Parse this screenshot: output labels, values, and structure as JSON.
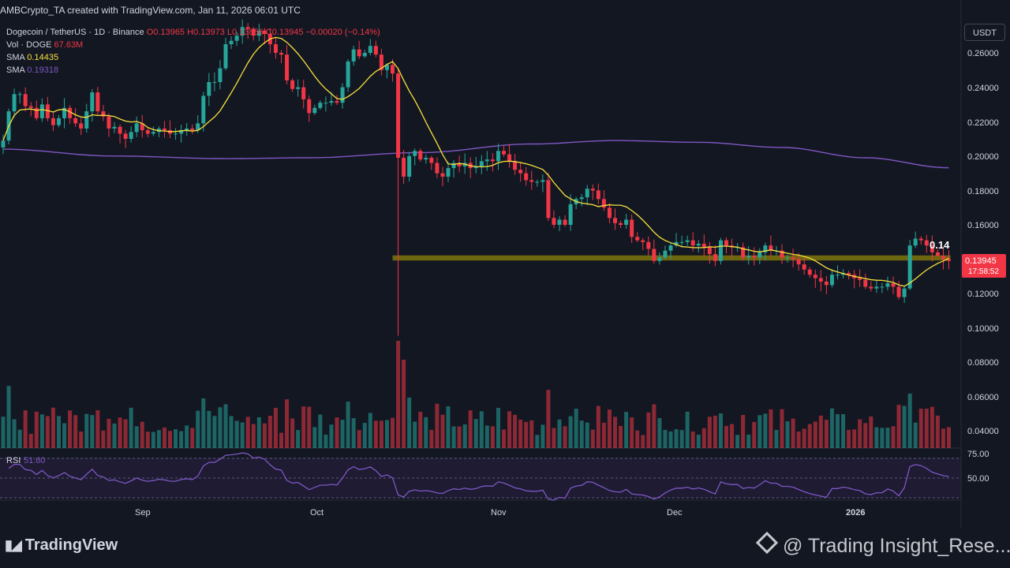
{
  "header": {
    "credit": "AMBCrypto_TA created with TradingView.com, Jan 11, 2026 06:01 UTC",
    "symbol": "Dogecoin / TetherUS · 1D · Binance",
    "ohlc_text": "O0.13965 H0.13973 L0.13856 C0.13945 −0.00020 (−0.14%)",
    "volume_label": "Vol · DOGE",
    "volume_value": "67.63M",
    "sma1_label": "SMA",
    "sma1_value": "0.14435",
    "sma2_label": "SMA",
    "sma2_value": "0.19318",
    "currency_button": "USDT"
  },
  "colors": {
    "background": "#131722",
    "up": "#26a69a",
    "down": "#f23645",
    "sma_fast": "#f7e03d",
    "sma_slow": "#7e57c2",
    "support_zone": "#b5a800",
    "rsi_line": "#7e57c2"
  },
  "price_axis": {
    "labels": [
      "0.26000",
      "0.24000",
      "0.22000",
      "0.20000",
      "0.18000",
      "0.16000",
      "0.14000",
      "0.12000",
      "0.10000",
      "0.08000",
      "0.06000",
      "0.04000"
    ],
    "current_price": "0.13945",
    "countdown": "17:58:52"
  },
  "rsi_axis": {
    "labels": [
      "75.00",
      "50.00"
    ]
  },
  "time_axis": {
    "labels": [
      "Sep",
      "Oct",
      "Nov",
      "Dec",
      "2026"
    ]
  },
  "annotation": {
    "level_label": "0.14"
  },
  "rsi_legend": {
    "label": "RSI",
    "value": "51.60"
  },
  "branding": {
    "logo": "TradingView",
    "watermark": "@ Trading Insight_Rese..."
  },
  "chart_data": [
    {
      "type": "candlestick",
      "symbol": "DOGE/USDT",
      "interval": "1D",
      "y_axis": {
        "min": 0.03,
        "max": 0.27,
        "ticks": [
          0.26,
          0.24,
          0.22,
          0.2,
          0.18,
          0.16,
          0.14,
          0.12,
          0.1,
          0.08,
          0.06,
          0.04
        ]
      },
      "x_axis": {
        "start": "2025-08-09",
        "end": "2026-01-11",
        "tick_labels": [
          "Sep",
          "Oct",
          "Nov",
          "Dec",
          "2026"
        ]
      },
      "close_series": [
        0.209,
        0.226,
        0.236,
        0.236,
        0.229,
        0.228,
        0.222,
        0.23,
        0.222,
        0.218,
        0.222,
        0.228,
        0.222,
        0.219,
        0.216,
        0.226,
        0.237,
        0.226,
        0.223,
        0.216,
        0.217,
        0.213,
        0.21,
        0.214,
        0.219,
        0.215,
        0.213,
        0.214,
        0.216,
        0.215,
        0.213,
        0.213,
        0.215,
        0.216,
        0.215,
        0.219,
        0.235,
        0.243,
        0.243,
        0.251,
        0.265,
        0.267,
        0.27,
        0.275,
        0.274,
        0.27,
        0.273,
        0.271,
        0.265,
        0.26,
        0.259,
        0.244,
        0.239,
        0.24,
        0.233,
        0.225,
        0.228,
        0.231,
        0.231,
        0.232,
        0.231,
        0.24,
        0.255,
        0.262,
        0.258,
        0.26,
        0.264,
        0.259,
        0.25,
        0.253,
        0.248,
        0.199,
        0.188,
        0.2,
        0.203,
        0.198,
        0.199,
        0.196,
        0.19,
        0.188,
        0.193,
        0.196,
        0.194,
        0.196,
        0.193,
        0.194,
        0.197,
        0.198,
        0.197,
        0.203,
        0.201,
        0.197,
        0.192,
        0.19,
        0.186,
        0.185,
        0.185,
        0.186,
        0.164,
        0.16,
        0.163,
        0.16,
        0.172,
        0.175,
        0.176,
        0.181,
        0.18,
        0.175,
        0.17,
        0.164,
        0.161,
        0.16,
        0.163,
        0.153,
        0.151,
        0.15,
        0.146,
        0.139,
        0.141,
        0.145,
        0.148,
        0.15,
        0.15,
        0.151,
        0.148,
        0.149,
        0.147,
        0.143,
        0.139,
        0.151,
        0.148,
        0.147,
        0.147,
        0.141,
        0.142,
        0.141,
        0.144,
        0.148,
        0.145,
        0.145,
        0.141,
        0.141,
        0.14,
        0.137,
        0.134,
        0.131,
        0.129,
        0.127,
        0.125,
        0.131,
        0.131,
        0.132,
        0.131,
        0.129,
        0.128,
        0.124,
        0.123,
        0.124,
        0.124,
        0.126,
        0.124,
        0.118,
        0.123,
        0.148,
        0.152,
        0.151,
        0.148,
        0.144,
        0.142,
        0.14,
        0.139
      ],
      "support_zone": {
        "low": 0.1395,
        "high": 0.142,
        "label": "0.14"
      },
      "sma_fast_last": 0.14435,
      "sma_slow_last": 0.19318
    },
    {
      "type": "bar",
      "name": "Vol · DOGE",
      "last_value": "67.63M"
    },
    {
      "type": "line",
      "name": "RSI",
      "y_axis": {
        "ticks": [
          75,
          50
        ],
        "band": [
          30,
          70
        ]
      },
      "last_value": 51.6
    }
  ]
}
